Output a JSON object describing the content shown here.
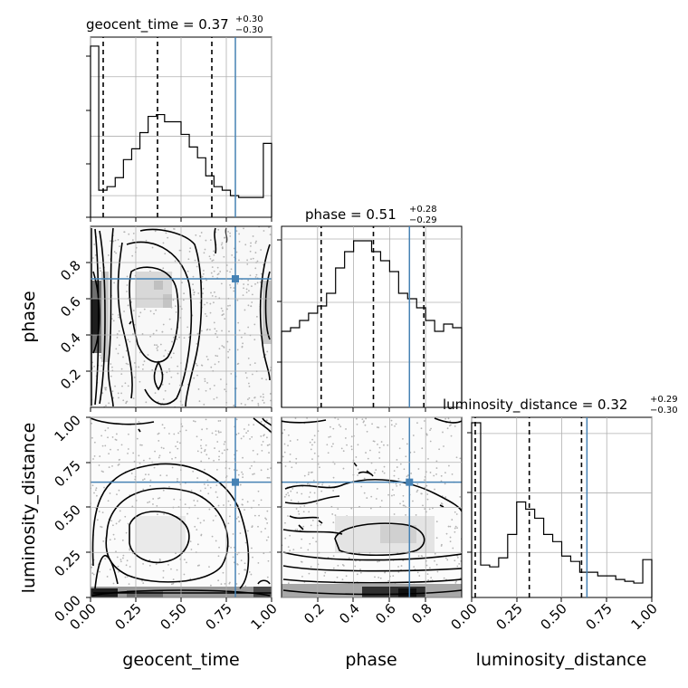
{
  "chart_data": {
    "type": "corner",
    "parameters": [
      "geocent_time",
      "phase",
      "luminosity_distance"
    ],
    "truth_color": "#4682b4",
    "truths": {
      "geocent_time": 0.8,
      "phase": 0.71,
      "luminosity_distance": 0.64
    },
    "titles": [
      {
        "text": "geocent_time = 0.37",
        "sup": "+0.30",
        "sub": "−0.30"
      },
      {
        "text": "phase = 0.51",
        "sup": "+0.28",
        "sub": "−0.29"
      },
      {
        "text": "luminosity_distance = 0.32",
        "sup": "+0.29",
        "sub": "−0.30"
      }
    ],
    "axis_labels": {
      "geocent_time": "geocent_time",
      "phase": "phase",
      "luminosity_distance": "luminosity_distance"
    },
    "ticks": {
      "geocent_time": [
        "0.00",
        "0.25",
        "0.50",
        "0.75",
        "1.00"
      ],
      "phase": [
        "0.2",
        "0.4",
        "0.6",
        "0.8"
      ],
      "luminosity_distance": [
        "0.00",
        "0.25",
        "0.50",
        "0.75",
        "1.00"
      ]
    },
    "histograms": [
      {
        "name": "geocent_time",
        "xlim": [
          0,
          1
        ],
        "values": [
          0.95,
          0.15,
          0.17,
          0.22,
          0.32,
          0.38,
          0.47,
          0.56,
          0.57,
          0.53,
          0.53,
          0.46,
          0.39,
          0.33,
          0.23,
          0.17,
          0.15,
          0.12,
          0.11,
          0.11,
          0.11,
          0.41
        ],
        "quantiles": [
          0.07,
          0.37,
          0.67
        ]
      },
      {
        "name": "phase",
        "xlim": [
          0,
          1
        ],
        "values": [
          0.42,
          0.44,
          0.48,
          0.52,
          0.56,
          0.63,
          0.77,
          0.86,
          0.92,
          0.92,
          0.86,
          0.81,
          0.75,
          0.63,
          0.6,
          0.55,
          0.48,
          0.42,
          0.46,
          0.44
        ],
        "quantiles": [
          0.22,
          0.51,
          0.79
        ]
      },
      {
        "name": "luminosity_distance",
        "xlim": [
          0,
          1
        ],
        "values": [
          0.97,
          0.18,
          0.17,
          0.22,
          0.35,
          0.53,
          0.49,
          0.44,
          0.35,
          0.31,
          0.23,
          0.2,
          0.14,
          0.14,
          0.12,
          0.12,
          0.1,
          0.09,
          0.08,
          0.21
        ],
        "quantiles": [
          0.02,
          0.32,
          0.61
        ]
      }
    ],
    "joint_panels": [
      {
        "x": "geocent_time",
        "y": "phase"
      },
      {
        "x": "geocent_time",
        "y": "luminosity_distance"
      },
      {
        "x": "phase",
        "y": "luminosity_distance"
      }
    ],
    "grid": true
  }
}
